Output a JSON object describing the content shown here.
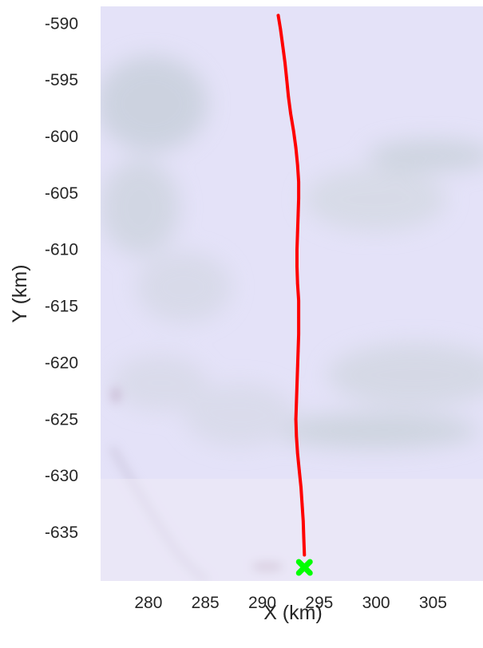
{
  "chart_data": {
    "type": "line",
    "title": "",
    "xlabel": "X (km)",
    "ylabel": "Y (km)",
    "xlim": [
      275.8,
      309.6
    ],
    "ylim": [
      -639.3,
      -588.5
    ],
    "xticks": [
      280,
      285,
      290,
      295,
      300,
      305
    ],
    "yticks": [
      -590,
      -595,
      -600,
      -605,
      -610,
      -615,
      -620,
      -625,
      -630,
      -635
    ],
    "grid": false,
    "legend": "none",
    "background": "satellite image (pale lavender-white ice surface)",
    "series": [
      {
        "color": "#ff0000",
        "x": [
          291.4,
          291.6,
          291.8,
          292.0,
          292.15,
          292.3,
          292.5,
          292.75,
          292.95,
          293.1,
          293.2,
          293.2,
          293.15,
          293.1,
          293.05,
          293.05,
          293.1,
          293.2,
          293.2,
          293.2,
          293.15,
          293.1,
          293.05,
          293.0,
          292.95,
          293.0,
          293.1,
          293.25,
          293.4,
          293.5,
          293.6,
          293.65,
          293.7
        ],
        "y": [
          -589.3,
          -590.5,
          -592.0,
          -593.5,
          -595.0,
          -596.5,
          -598.0,
          -599.5,
          -601.0,
          -602.5,
          -604.0,
          -605.5,
          -607.0,
          -608.5,
          -610.0,
          -611.5,
          -613.0,
          -614.5,
          -616.0,
          -617.5,
          -619.0,
          -620.5,
          -622.0,
          -623.5,
          -625.0,
          -626.5,
          -628.0,
          -629.5,
          -631.0,
          -632.5,
          -634.0,
          -635.5,
          -637.0
        ]
      }
    ],
    "markers": [
      {
        "shape": "x",
        "color": "#00ff00",
        "x": 293.7,
        "y": -638.1
      }
    ]
  }
}
